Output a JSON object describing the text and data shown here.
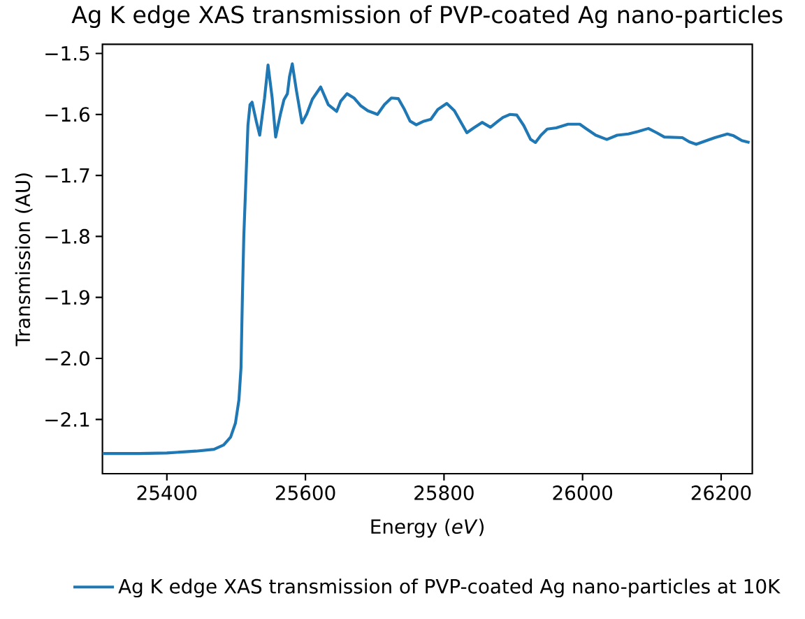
{
  "chart_data": {
    "type": "line",
    "title": "Ag K edge XAS transmission of PVP-coated Ag nano-particles",
    "xlabel": "Energy (*eV*)",
    "ylabel": "Transmission (AU)",
    "x": [
      25307,
      25360,
      25400,
      25442,
      25468,
      25482,
      25492,
      25499,
      25504,
      25507,
      25509,
      25511,
      25514,
      25517,
      25520,
      25523,
      25529,
      25534,
      25541,
      25546,
      25552,
      25557,
      25564,
      25569,
      25574,
      25577,
      25581,
      25587,
      25595,
      25602,
      25610,
      25622,
      25633,
      25645,
      25651,
      25660,
      25670,
      25680,
      25690,
      25704,
      25714,
      25724,
      25734,
      25743,
      25751,
      25760,
      25771,
      25781,
      25791,
      25804,
      25815,
      25825,
      25833,
      25843,
      25855,
      25867,
      25878,
      25885,
      25895,
      25905,
      25915,
      25925,
      25932,
      25940,
      25949,
      25962,
      25979,
      25996,
      26006,
      26019,
      26035,
      26050,
      26066,
      26080,
      26095,
      26107,
      26118,
      26144,
      26154,
      26164,
      26176,
      26191,
      26209,
      26218,
      26230,
      26241
    ],
    "series": [
      {
        "name": "Ag K edge XAS transmission of PVP-coated Ag nano-particles at 10K",
        "color": "#1f77b4",
        "values": [
          -2.156,
          -2.156,
          -2.155,
          -2.152,
          -2.149,
          -2.142,
          -2.129,
          -2.106,
          -2.068,
          -2.015,
          -1.9,
          -1.801,
          -1.71,
          -1.618,
          -1.584,
          -1.58,
          -1.611,
          -1.634,
          -1.573,
          -1.519,
          -1.573,
          -1.637,
          -1.599,
          -1.576,
          -1.566,
          -1.538,
          -1.517,
          -1.561,
          -1.614,
          -1.599,
          -1.575,
          -1.555,
          -1.584,
          -1.595,
          -1.578,
          -1.566,
          -1.573,
          -1.586,
          -1.594,
          -1.6,
          -1.584,
          -1.573,
          -1.574,
          -1.592,
          -1.611,
          -1.617,
          -1.611,
          -1.608,
          -1.592,
          -1.582,
          -1.594,
          -1.614,
          -1.63,
          -1.622,
          -1.613,
          -1.621,
          -1.611,
          -1.605,
          -1.6,
          -1.601,
          -1.618,
          -1.641,
          -1.646,
          -1.634,
          -1.624,
          -1.622,
          -1.616,
          -1.616,
          -1.624,
          -1.634,
          -1.641,
          -1.634,
          -1.632,
          -1.628,
          -1.623,
          -1.63,
          -1.637,
          -1.638,
          -1.645,
          -1.649,
          -1.644,
          -1.638,
          -1.632,
          -1.635,
          -1.643,
          -1.646
        ]
      }
    ],
    "xlim": [
      25307,
      26245
    ],
    "ylim": [
      -2.189,
      -1.485
    ],
    "xticks": [
      25400,
      25600,
      25800,
      26000,
      26200
    ],
    "yticks": [
      {
        "value": -2.1,
        "label": "−2.1"
      },
      {
        "value": -2.0,
        "label": "−2.0"
      },
      {
        "value": -1.9,
        "label": "−1.9"
      },
      {
        "value": -1.8,
        "label": "−1.8"
      },
      {
        "value": -1.7,
        "label": "−1.7"
      },
      {
        "value": -1.6,
        "label": "−1.6"
      },
      {
        "value": -1.5,
        "label": "−1.5"
      }
    ],
    "legend": "bottom",
    "line_style": "solid"
  }
}
